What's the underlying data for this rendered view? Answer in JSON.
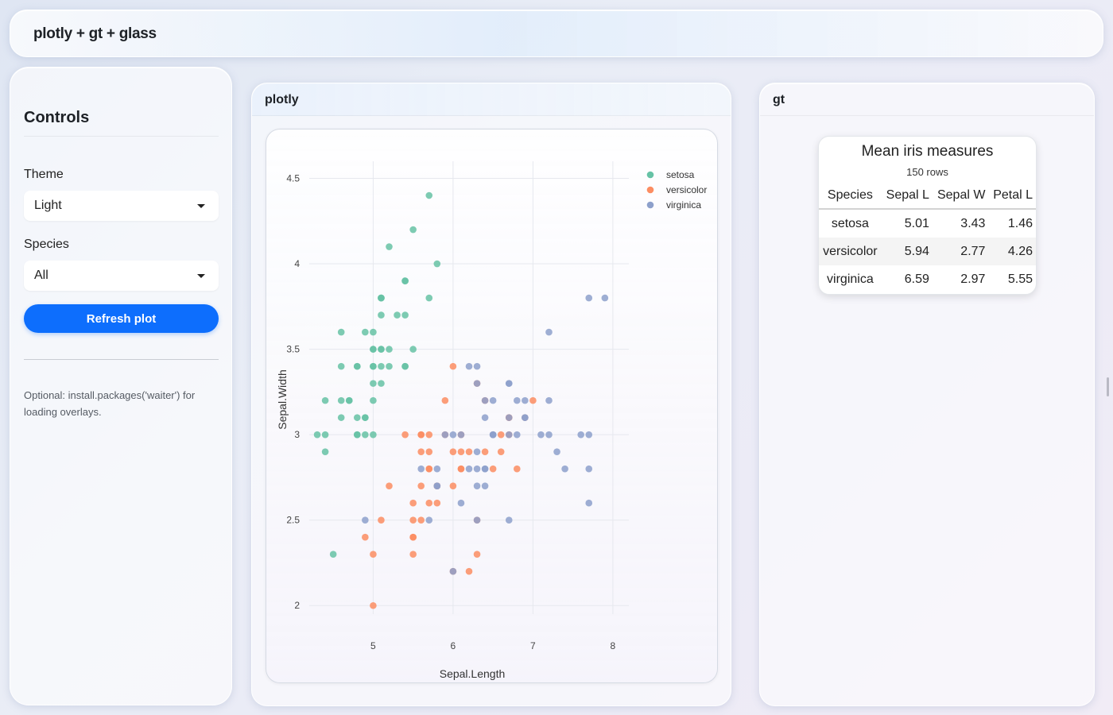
{
  "navbar": {
    "title": "plotly + gt + glass"
  },
  "sidebar": {
    "title": "Controls",
    "theme_label": "Theme",
    "theme_value": "Light",
    "species_label": "Species",
    "species_value": "All",
    "refresh_label": "Refresh plot",
    "note": "Optional: install.packages('waiter') for loading overlays."
  },
  "cards": {
    "plotly_title": "plotly",
    "gt_title": "gt"
  },
  "gt_table": {
    "title": "Mean iris measures",
    "subtitle": "150 rows",
    "columns": [
      "Species",
      "Sepal L",
      "Sepal W",
      "Petal L"
    ],
    "rows": [
      [
        "setosa",
        "5.01",
        "3.43",
        "1.46"
      ],
      [
        "versicolor",
        "5.94",
        "2.77",
        "4.26"
      ],
      [
        "virginica",
        "6.59",
        "2.97",
        "5.55"
      ]
    ]
  },
  "colors": {
    "setosa": "#66c2a5",
    "versicolor": "#fc8d62",
    "virginica": "#8da0cb",
    "accent": "#0d6efd"
  },
  "chart_data": {
    "type": "scatter",
    "title": "",
    "xlabel": "Sepal.Length",
    "ylabel": "Sepal.Width",
    "xlim": [
      4.2,
      8.2
    ],
    "ylim": [
      1.95,
      4.6
    ],
    "xticks": [
      5,
      6,
      7,
      8
    ],
    "yticks": [
      2,
      2.5,
      3,
      3.5,
      4,
      4.5
    ],
    "ytick_labels": [
      "2",
      "2.5",
      "3",
      "3.5",
      "4",
      "4.5"
    ],
    "legend": "top-right",
    "series": [
      {
        "name": "setosa",
        "color": "#66c2a5",
        "points": [
          [
            5.1,
            3.5
          ],
          [
            4.9,
            3.0
          ],
          [
            4.7,
            3.2
          ],
          [
            4.6,
            3.1
          ],
          [
            5.0,
            3.6
          ],
          [
            5.4,
            3.9
          ],
          [
            4.6,
            3.4
          ],
          [
            5.0,
            3.4
          ],
          [
            4.4,
            2.9
          ],
          [
            4.9,
            3.1
          ],
          [
            5.4,
            3.7
          ],
          [
            4.8,
            3.4
          ],
          [
            4.8,
            3.0
          ],
          [
            4.3,
            3.0
          ],
          [
            5.8,
            4.0
          ],
          [
            5.7,
            4.4
          ],
          [
            5.4,
            3.9
          ],
          [
            5.1,
            3.5
          ],
          [
            5.7,
            3.8
          ],
          [
            5.1,
            3.8
          ],
          [
            5.4,
            3.4
          ],
          [
            5.1,
            3.7
          ],
          [
            4.6,
            3.6
          ],
          [
            5.1,
            3.3
          ],
          [
            4.8,
            3.4
          ],
          [
            5.0,
            3.0
          ],
          [
            5.0,
            3.4
          ],
          [
            5.2,
            3.5
          ],
          [
            5.2,
            3.4
          ],
          [
            4.7,
            3.2
          ],
          [
            4.8,
            3.1
          ],
          [
            5.4,
            3.4
          ],
          [
            5.2,
            4.1
          ],
          [
            5.5,
            4.2
          ],
          [
            4.9,
            3.1
          ],
          [
            5.0,
            3.2
          ],
          [
            5.5,
            3.5
          ],
          [
            4.9,
            3.6
          ],
          [
            4.4,
            3.0
          ],
          [
            5.1,
            3.4
          ],
          [
            5.0,
            3.5
          ],
          [
            4.5,
            2.3
          ],
          [
            4.4,
            3.2
          ],
          [
            5.0,
            3.5
          ],
          [
            5.1,
            3.8
          ],
          [
            4.8,
            3.0
          ],
          [
            5.1,
            3.8
          ],
          [
            4.6,
            3.2
          ],
          [
            5.3,
            3.7
          ],
          [
            5.0,
            3.3
          ]
        ]
      },
      {
        "name": "versicolor",
        "color": "#fc8d62",
        "points": [
          [
            7.0,
            3.2
          ],
          [
            6.4,
            3.2
          ],
          [
            6.9,
            3.1
          ],
          [
            5.5,
            2.3
          ],
          [
            6.5,
            2.8
          ],
          [
            5.7,
            2.8
          ],
          [
            6.3,
            3.3
          ],
          [
            4.9,
            2.4
          ],
          [
            6.6,
            2.9
          ],
          [
            5.2,
            2.7
          ],
          [
            5.0,
            2.0
          ],
          [
            5.9,
            3.0
          ],
          [
            6.0,
            2.2
          ],
          [
            6.1,
            2.9
          ],
          [
            5.6,
            2.9
          ],
          [
            6.7,
            3.1
          ],
          [
            5.6,
            3.0
          ],
          [
            5.8,
            2.7
          ],
          [
            6.2,
            2.2
          ],
          [
            5.6,
            2.5
          ],
          [
            5.9,
            3.2
          ],
          [
            6.1,
            2.8
          ],
          [
            6.3,
            2.5
          ],
          [
            6.1,
            2.8
          ],
          [
            6.4,
            2.9
          ],
          [
            6.6,
            3.0
          ],
          [
            6.8,
            2.8
          ],
          [
            6.7,
            3.0
          ],
          [
            6.0,
            2.9
          ],
          [
            5.7,
            2.6
          ],
          [
            5.5,
            2.4
          ],
          [
            5.5,
            2.4
          ],
          [
            5.8,
            2.7
          ],
          [
            6.0,
            2.7
          ],
          [
            5.4,
            3.0
          ],
          [
            6.0,
            3.4
          ],
          [
            6.7,
            3.1
          ],
          [
            6.3,
            2.3
          ],
          [
            5.6,
            3.0
          ],
          [
            5.5,
            2.5
          ],
          [
            5.5,
            2.6
          ],
          [
            6.1,
            3.0
          ],
          [
            5.8,
            2.6
          ],
          [
            5.0,
            2.3
          ],
          [
            5.6,
            2.7
          ],
          [
            5.7,
            3.0
          ],
          [
            5.7,
            2.9
          ],
          [
            6.2,
            2.9
          ],
          [
            5.1,
            2.5
          ],
          [
            5.7,
            2.8
          ]
        ]
      },
      {
        "name": "virginica",
        "color": "#8da0cb",
        "points": [
          [
            6.3,
            3.3
          ],
          [
            5.8,
            2.7
          ],
          [
            7.1,
            3.0
          ],
          [
            6.3,
            2.9
          ],
          [
            6.5,
            3.0
          ],
          [
            7.6,
            3.0
          ],
          [
            4.9,
            2.5
          ],
          [
            7.3,
            2.9
          ],
          [
            6.7,
            2.5
          ],
          [
            7.2,
            3.6
          ],
          [
            6.5,
            3.2
          ],
          [
            6.4,
            2.7
          ],
          [
            6.8,
            3.0
          ],
          [
            5.7,
            2.5
          ],
          [
            5.8,
            2.8
          ],
          [
            6.4,
            3.2
          ],
          [
            6.5,
            3.0
          ],
          [
            7.7,
            3.8
          ],
          [
            7.7,
            2.6
          ],
          [
            6.0,
            2.2
          ],
          [
            6.9,
            3.2
          ],
          [
            5.6,
            2.8
          ],
          [
            7.7,
            2.8
          ],
          [
            6.3,
            2.7
          ],
          [
            6.7,
            3.3
          ],
          [
            7.2,
            3.2
          ],
          [
            6.2,
            2.8
          ],
          [
            6.1,
            3.0
          ],
          [
            6.4,
            2.8
          ],
          [
            7.2,
            3.0
          ],
          [
            7.4,
            2.8
          ],
          [
            7.9,
            3.8
          ],
          [
            6.4,
            2.8
          ],
          [
            6.3,
            2.8
          ],
          [
            6.1,
            2.6
          ],
          [
            7.7,
            3.0
          ],
          [
            6.3,
            3.4
          ],
          [
            6.4,
            3.1
          ],
          [
            6.0,
            3.0
          ],
          [
            6.9,
            3.1
          ],
          [
            6.7,
            3.1
          ],
          [
            6.9,
            3.1
          ],
          [
            5.8,
            2.7
          ],
          [
            6.8,
            3.2
          ],
          [
            6.7,
            3.3
          ],
          [
            6.7,
            3.0
          ],
          [
            6.3,
            2.5
          ],
          [
            6.5,
            3.0
          ],
          [
            6.2,
            3.4
          ],
          [
            5.9,
            3.0
          ]
        ]
      }
    ]
  }
}
